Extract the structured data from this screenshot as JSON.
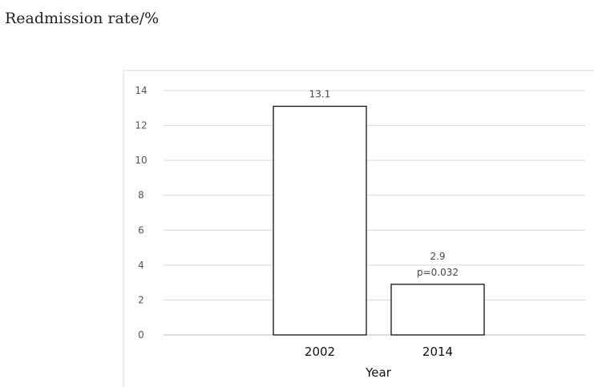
{
  "chart_data": {
    "type": "bar",
    "ylabel": "Readmission rate/%",
    "xlabel": "Year",
    "categories": [
      "2002",
      "2014"
    ],
    "values": [
      13.1,
      2.9
    ],
    "data_labels": [
      [
        "13.1"
      ],
      [
        "2.9",
        "p=0.032"
      ]
    ],
    "ylim": [
      0,
      14
    ],
    "yticks": [
      "0",
      "2",
      "4",
      "6",
      "8",
      "10",
      "12",
      "14"
    ],
    "grid": true,
    "legend": "none",
    "bar_fill": "#ffffff",
    "bar_stroke": "#000000"
  }
}
